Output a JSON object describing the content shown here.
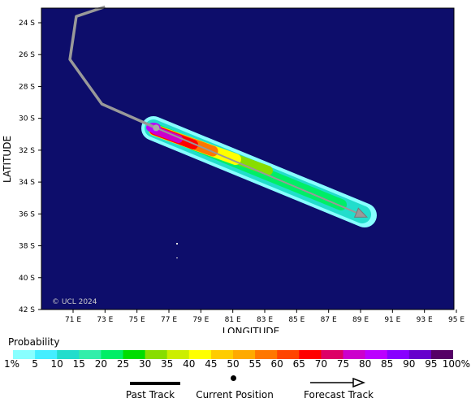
{
  "map": {
    "x_axis_label": "LONGITUDE",
    "y_axis_label": "LATITUDE",
    "copyright": "© UCL 2024",
    "lon_ticks": [
      "71 E",
      "73 E",
      "75 E",
      "77 E",
      "79 E",
      "81 E",
      "83 E",
      "85 E",
      "87 E",
      "89 E",
      "91 E",
      "93 E",
      "95 E"
    ],
    "lat_ticks": [
      "24 S",
      "26 S",
      "28 S",
      "30 S",
      "32 S",
      "34 S",
      "36 S",
      "38 S",
      "40 S",
      "42 S"
    ],
    "ocean_color": "#0d0d6b",
    "past_track": [
      [
        73.0,
        -23.0
      ],
      [
        71.2,
        -23.6
      ],
      [
        70.8,
        -26.3
      ],
      [
        72.8,
        -29.1
      ],
      [
        76.2,
        -30.6
      ]
    ],
    "current_position": [
      76.2,
      -30.6
    ],
    "forecast_track": [
      [
        76.2,
        -30.6
      ],
      [
        89.4,
        -36.2
      ]
    ]
  },
  "legend": {
    "title": "Probability",
    "labels": [
      "1%",
      "5",
      "10",
      "15",
      "20",
      "25",
      "30",
      "35",
      "40",
      "45",
      "50",
      "55",
      "60",
      "65",
      "70",
      "75",
      "80",
      "85",
      "90",
      "95",
      "100%"
    ],
    "colors": [
      "#88ffff",
      "#44eeff",
      "#22ddcc",
      "#33eeaa",
      "#00ee66",
      "#00dd00",
      "#88dd00",
      "#ccee00",
      "#ffff00",
      "#ffcc00",
      "#ffaa00",
      "#ff7700",
      "#ff4400",
      "#ff0000",
      "#dd0066",
      "#cc00cc",
      "#bb00ff",
      "#8800ff",
      "#6600cc",
      "#550066"
    ]
  },
  "keys": {
    "past_track": "Past Track",
    "current_position": "Current Position",
    "forecast_track": "Forecast Track"
  }
}
